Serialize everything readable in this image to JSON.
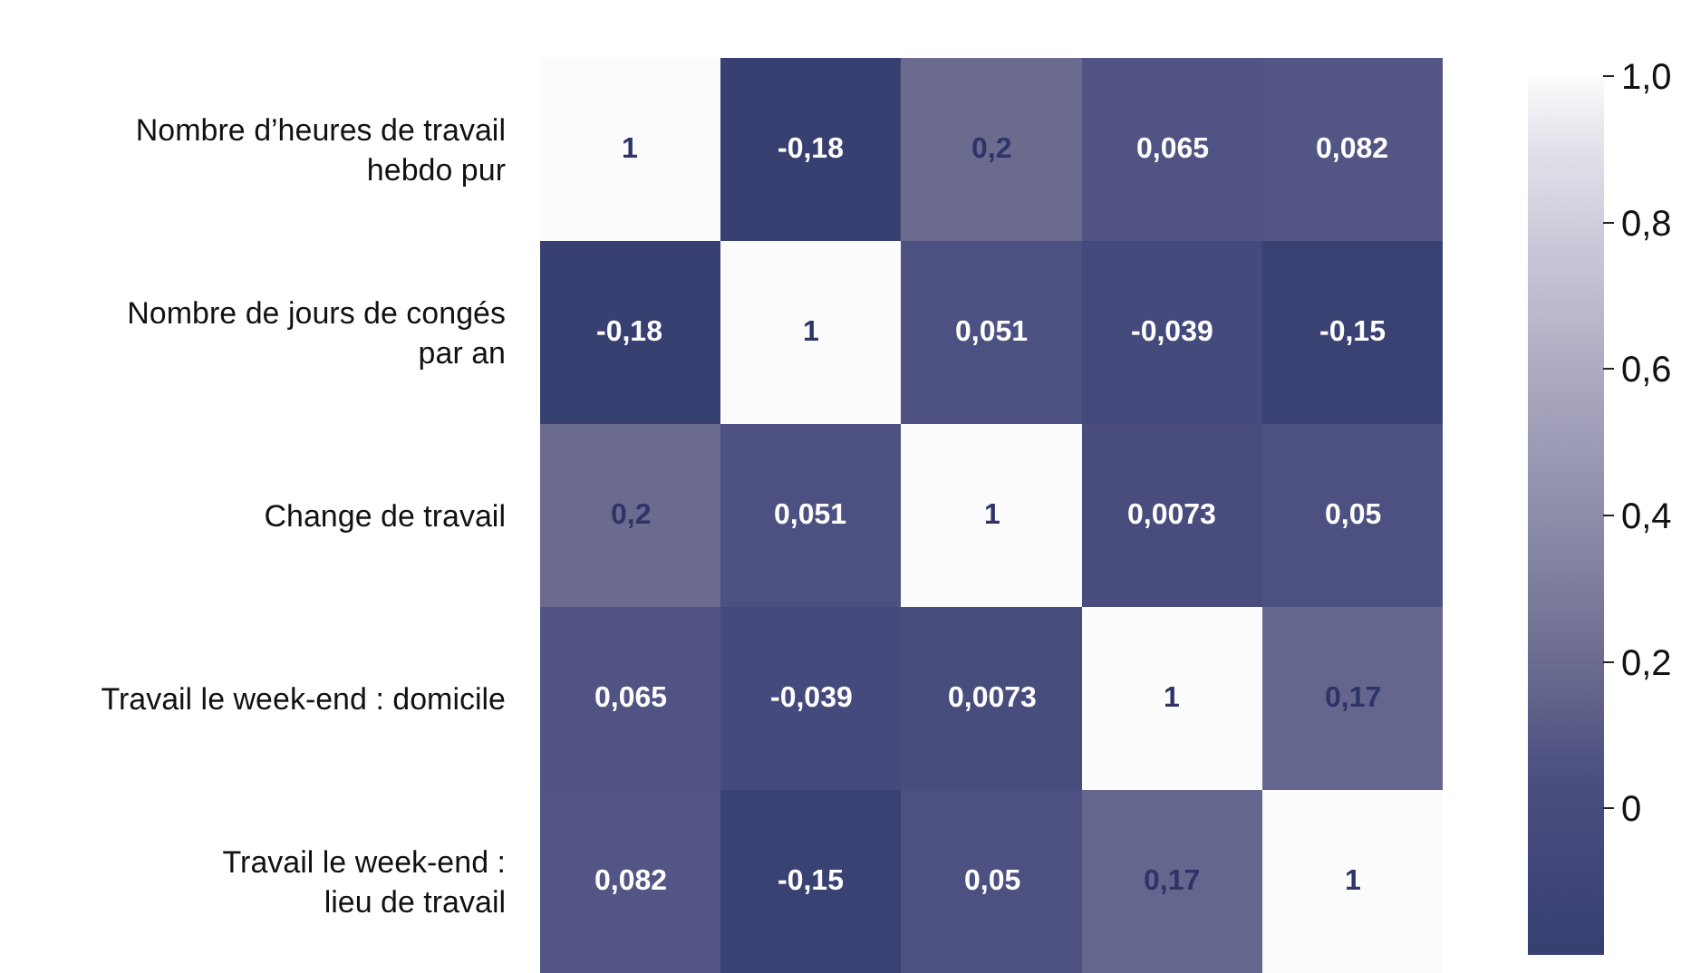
{
  "chart_data": {
    "type": "heatmap",
    "categories": [
      null,
      null,
      null,
      null,
      null
    ],
    "y_categories": [
      "Nombre d’heures de travail\nhebdo pur",
      "Nombre de jours de congés\npar an",
      "Change de travail",
      "Travail le week-end : domicile",
      "Travail le week-end :\nlieu de travail"
    ],
    "cells": [
      [
        1,
        -0.18,
        0.2,
        0.065,
        0.082
      ],
      [
        -0.18,
        1,
        0.051,
        -0.039,
        -0.15
      ],
      [
        0.2,
        0.051,
        1,
        0.0073,
        0.05
      ],
      [
        0.065,
        -0.039,
        0.0073,
        1,
        0.17
      ],
      [
        0.082,
        -0.15,
        0.05,
        0.17,
        1
      ]
    ],
    "cell_labels": [
      [
        "1",
        "-0,18",
        "0,2",
        "0,065",
        "0,082"
      ],
      [
        "-0,18",
        "1",
        "0,051",
        "-0,039",
        "-0,15"
      ],
      [
        "0,2",
        "0,051",
        "1",
        "0,0073",
        "0,05"
      ],
      [
        "0,065",
        "-0,039",
        "0,0073",
        "1",
        "0,17"
      ],
      [
        "0,082",
        "-0,15",
        "0,05",
        "0,17",
        "1"
      ]
    ],
    "clim": [
      -0.2,
      1.0
    ],
    "cticks": [
      {
        "value": 1.0,
        "label": "1,0"
      },
      {
        "value": 0.8,
        "label": "0,8"
      },
      {
        "value": 0.6,
        "label": "0,6"
      },
      {
        "value": 0.4,
        "label": "0,4"
      },
      {
        "value": 0.2,
        "label": "0,2"
      },
      {
        "value": 0,
        "label": "0"
      }
    ]
  }
}
